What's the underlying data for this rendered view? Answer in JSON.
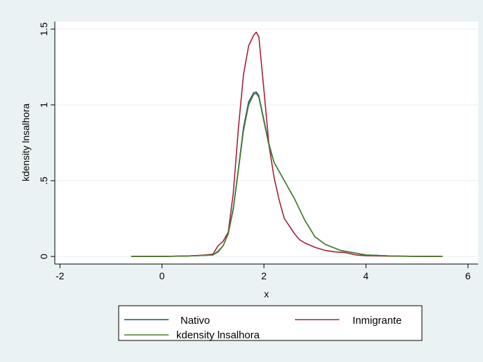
{
  "chart_data": {
    "type": "line",
    "title": "",
    "xlabel": "x",
    "ylabel": "kdensity lnsalhora",
    "xlim": [
      -2.1,
      6.2
    ],
    "ylim": [
      -0.05,
      1.55
    ],
    "xticks": [
      -2,
      0,
      2,
      4,
      6
    ],
    "yticks": [
      0,
      0.5,
      1,
      1.5
    ],
    "xtick_labels": [
      "-2",
      "0",
      "2",
      "4",
      "6"
    ],
    "ytick_labels": [
      "0",
      ".5",
      "1",
      "1.5"
    ],
    "grid": "horizontal",
    "legend_position": "bottom",
    "series": [
      {
        "name": "Nativo",
        "color": "#1f4e79",
        "x": [
          -0.6,
          0.0,
          0.5,
          0.8,
          1.0,
          1.1,
          1.2,
          1.3,
          1.4,
          1.5,
          1.6,
          1.7,
          1.8,
          1.85,
          1.9,
          2.0,
          2.1,
          2.2,
          2.4,
          2.6,
          2.8,
          3.0,
          3.2,
          3.5,
          4.0,
          4.5,
          5.0,
          5.5
        ],
        "y": [
          0.0,
          0.0,
          0.003,
          0.007,
          0.01,
          0.03,
          0.07,
          0.15,
          0.32,
          0.58,
          0.85,
          1.02,
          1.08,
          1.085,
          1.06,
          0.9,
          0.74,
          0.62,
          0.5,
          0.38,
          0.24,
          0.13,
          0.08,
          0.04,
          0.01,
          0.003,
          0.001,
          0.0
        ]
      },
      {
        "name": "Inmigrante",
        "color": "#a3213a",
        "x": [
          -0.6,
          0.0,
          0.5,
          0.8,
          1.0,
          1.1,
          1.2,
          1.3,
          1.4,
          1.5,
          1.6,
          1.7,
          1.8,
          1.85,
          1.9,
          2.0,
          2.1,
          2.2,
          2.3,
          2.4,
          2.5,
          2.6,
          2.7,
          2.8,
          3.0,
          3.2,
          3.4,
          3.6,
          3.8,
          4.0,
          4.5,
          5.0,
          5.5
        ],
        "y": [
          0.0,
          0.0,
          0.003,
          0.008,
          0.015,
          0.07,
          0.1,
          0.16,
          0.42,
          0.85,
          1.2,
          1.39,
          1.46,
          1.48,
          1.45,
          1.1,
          0.73,
          0.52,
          0.37,
          0.25,
          0.2,
          0.15,
          0.11,
          0.09,
          0.06,
          0.04,
          0.03,
          0.025,
          0.01,
          0.005,
          0.002,
          0.001,
          0.0
        ]
      },
      {
        "name": "kdensity lnsalhora",
        "color": "#4c7f2a",
        "x": [
          -0.6,
          0.0,
          0.5,
          0.8,
          1.0,
          1.1,
          1.2,
          1.3,
          1.4,
          1.5,
          1.6,
          1.7,
          1.8,
          1.85,
          1.9,
          2.0,
          2.1,
          2.2,
          2.4,
          2.6,
          2.8,
          3.0,
          3.2,
          3.5,
          4.0,
          4.5,
          5.0,
          5.5
        ],
        "y": [
          0.0,
          0.0,
          0.003,
          0.007,
          0.01,
          0.035,
          0.07,
          0.15,
          0.31,
          0.57,
          0.83,
          1.0,
          1.07,
          1.075,
          1.05,
          0.89,
          0.73,
          0.62,
          0.5,
          0.38,
          0.24,
          0.13,
          0.08,
          0.04,
          0.01,
          0.003,
          0.001,
          0.0
        ]
      }
    ]
  }
}
